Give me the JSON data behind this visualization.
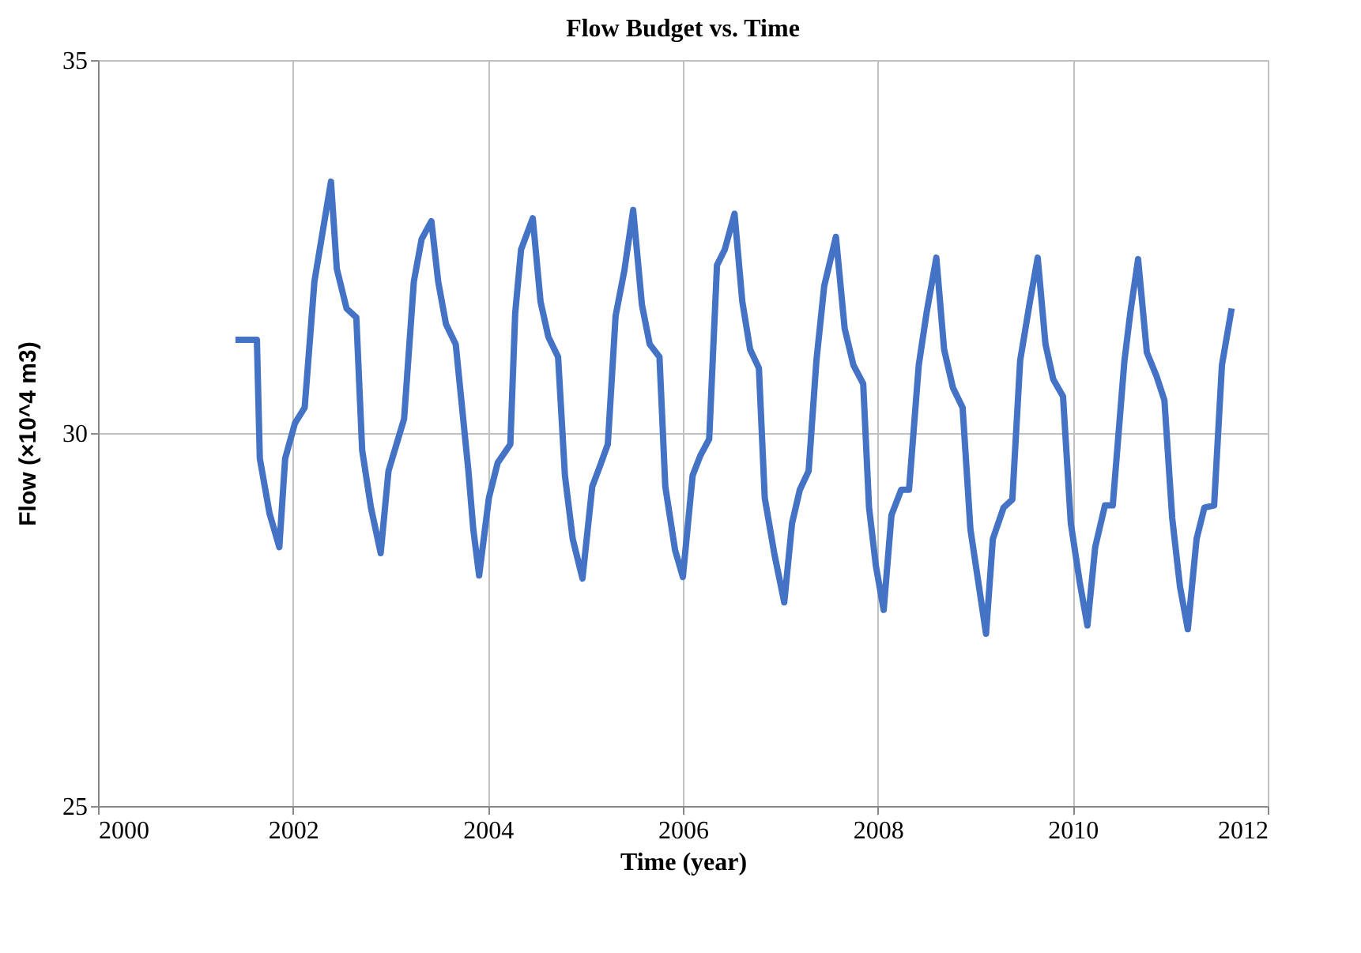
{
  "chart_data": {
    "type": "line",
    "title": "Flow Budget vs. Time",
    "xlabel": "Time (year)",
    "ylabel": "Flow (×10^4 m3)",
    "xlim": [
      2000,
      2012
    ],
    "xticks": [
      2000,
      2002,
      2004,
      2006,
      2008,
      2010,
      2012
    ],
    "ylim": [
      25,
      35
    ],
    "yticks": [
      25,
      30,
      35
    ],
    "grid": true,
    "legend": false,
    "marker": "none",
    "line_style": "solid",
    "x": [
      2001.41,
      2001.63,
      2001.66,
      2001.76,
      2001.86,
      2001.92,
      2002.02,
      2002.12,
      2002.22,
      2002.39,
      2002.45,
      2002.55,
      2002.65,
      2002.71,
      2002.8,
      2002.9,
      2002.98,
      2003.14,
      2003.24,
      2003.32,
      2003.42,
      2003.49,
      2003.57,
      2003.67,
      2003.8,
      2003.85,
      2003.91,
      2004.01,
      2004.1,
      2004.23,
      2004.28,
      2004.34,
      2004.46,
      2004.54,
      2004.62,
      2004.72,
      2004.79,
      2004.87,
      2004.97,
      2005.07,
      2005.15,
      2005.23,
      2005.31,
      2005.4,
      2005.49,
      2005.58,
      2005.66,
      2005.76,
      2005.82,
      2005.92,
      2006.0,
      2006.1,
      2006.18,
      2006.27,
      2006.35,
      2006.43,
      2006.53,
      2006.61,
      2006.69,
      2006.78,
      2006.84,
      2006.94,
      2007.04,
      2007.12,
      2007.2,
      2007.29,
      2007.37,
      2007.45,
      2007.57,
      2007.66,
      2007.75,
      2007.85,
      2007.91,
      2007.98,
      2008.06,
      2008.14,
      2008.24,
      2008.32,
      2008.42,
      2008.5,
      2008.6,
      2008.68,
      2008.77,
      2008.87,
      2008.95,
      2009.03,
      2009.11,
      2009.18,
      2009.29,
      2009.38,
      2009.46,
      2009.56,
      2009.64,
      2009.72,
      2009.8,
      2009.9,
      2009.98,
      2010.07,
      2010.15,
      2010.23,
      2010.33,
      2010.41,
      2010.53,
      2010.59,
      2010.67,
      2010.76,
      2010.86,
      2010.94,
      2011.02,
      2011.1,
      2011.18,
      2011.27,
      2011.35,
      2011.45,
      2011.53,
      2011.63
    ],
    "series": [
      {
        "color": "#4472c4",
        "values": [
          31.25,
          31.25,
          29.66,
          28.92,
          28.47,
          29.66,
          30.13,
          30.34,
          32.03,
          33.37,
          32.2,
          31.67,
          31.55,
          29.77,
          29.0,
          28.39,
          29.49,
          30.19,
          32.03,
          32.6,
          32.84,
          32.03,
          31.46,
          31.19,
          29.49,
          28.71,
          28.09,
          29.13,
          29.6,
          29.85,
          31.61,
          32.46,
          32.88,
          31.76,
          31.29,
          31.02,
          29.43,
          28.58,
          28.05,
          29.28,
          29.56,
          29.85,
          31.57,
          32.18,
          32.99,
          31.72,
          31.19,
          31.02,
          29.28,
          28.43,
          28.07,
          29.43,
          29.7,
          29.92,
          32.25,
          32.46,
          32.94,
          31.76,
          31.12,
          30.87,
          29.13,
          28.37,
          27.73,
          28.79,
          29.24,
          29.49,
          30.97,
          31.97,
          32.63,
          31.4,
          30.91,
          30.66,
          29.0,
          28.22,
          27.63,
          28.9,
          29.24,
          29.24,
          30.91,
          31.61,
          32.35,
          31.12,
          30.61,
          30.34,
          28.71,
          28.01,
          27.31,
          28.58,
          29.0,
          29.11,
          30.97,
          31.76,
          32.35,
          31.19,
          30.72,
          30.49,
          28.79,
          28.01,
          27.42,
          28.47,
          29.03,
          29.03,
          30.97,
          31.61,
          32.33,
          31.08,
          30.76,
          30.44,
          28.86,
          27.94,
          27.37,
          28.58,
          29.0,
          29.03,
          30.91,
          31.67
        ]
      }
    ]
  }
}
